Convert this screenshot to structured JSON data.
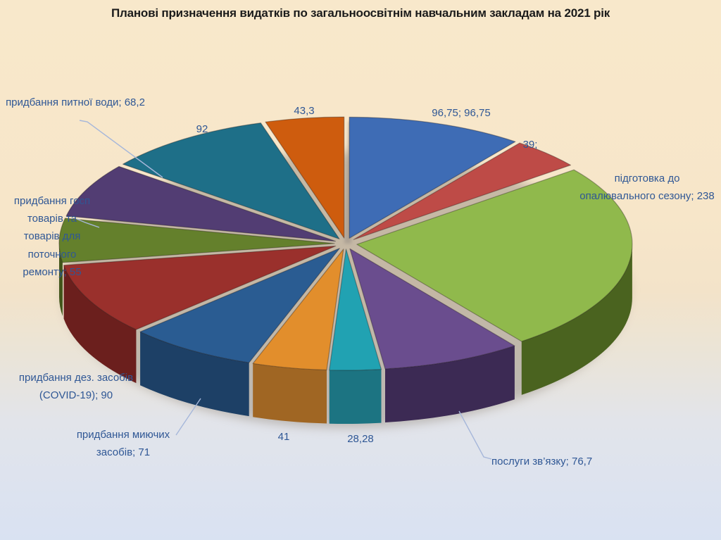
{
  "chart_data": {
    "type": "pie",
    "style": "3d-exploded",
    "title": "Планові призначення видатків по загальноосвітнім навчальним закладам на  2021 рік",
    "total": 939.23,
    "legend": "none",
    "start_angle_deg": 0,
    "direction": "clockwise",
    "slices": [
      {
        "name": "96,75",
        "value": 96.75,
        "label_text": "96,75; 96,75",
        "color": "#3E6CB5",
        "side_color": "#2A4B82"
      },
      {
        "name": "39",
        "value": 39,
        "label_text": "39;",
        "color": "#BE4B47",
        "side_color": "#8A2F2C"
      },
      {
        "name": "підготовка до опалювального сезону",
        "value": 238,
        "label_text": "підготовка до опалювального сезону; 238",
        "color": "#90B94C",
        "side_color": "#4A631F"
      },
      {
        "name": "послуги зв’язку",
        "value": 76.7,
        "label_text": "послуги зв’язку; 76,7",
        "color": "#6A4D8E",
        "side_color": "#3C2A54"
      },
      {
        "name": "28,28",
        "value": 28.28,
        "label_text": "28,28",
        "color": "#21A2B2",
        "side_color": "#1C7482"
      },
      {
        "name": "41",
        "value": 41,
        "label_text": "41",
        "color": "#E28E2C",
        "side_color": "#A06623"
      },
      {
        "name": "придбання миючих засобів",
        "value": 71,
        "label_text": "придбання миючих засобів; 71",
        "color": "#2A5C92",
        "side_color": "#1D4066"
      },
      {
        "name": "придбання дез. засобів (COVID-19)",
        "value": 90,
        "label_text": "придбання  дез. засобів (COVID-19); 90",
        "color": "#9A302C",
        "side_color": "#6B1F1D"
      },
      {
        "name": "придбання госп товарів та товарів для поточного ремонту",
        "value": 55,
        "label_text": "придбання госп товарів та товарів для поточного ремонту; 55",
        "color": "#64802C",
        "side_color": "#42551A"
      },
      {
        "name": "придбання питної води",
        "value": 68.2,
        "label_text": "придбання питної води; 68,2",
        "color": "#523D73",
        "side_color": "#342546"
      },
      {
        "name": "92",
        "value": 92,
        "label_text": "92",
        "color": "#1E6F88",
        "side_color": "#12485C"
      },
      {
        "name": "43,3",
        "value": 43.3,
        "label_text": "43,3",
        "color": "#CE5C0E",
        "side_color": "#8C3F09"
      }
    ]
  },
  "colors": {
    "label_text": "#2F5795",
    "leader_line": "#A6B7DA",
    "title_text": "#1B1B1B",
    "background_top": "#F8E8CB",
    "background_bottom": "#D9E2F2",
    "shadow": "#968D82"
  }
}
